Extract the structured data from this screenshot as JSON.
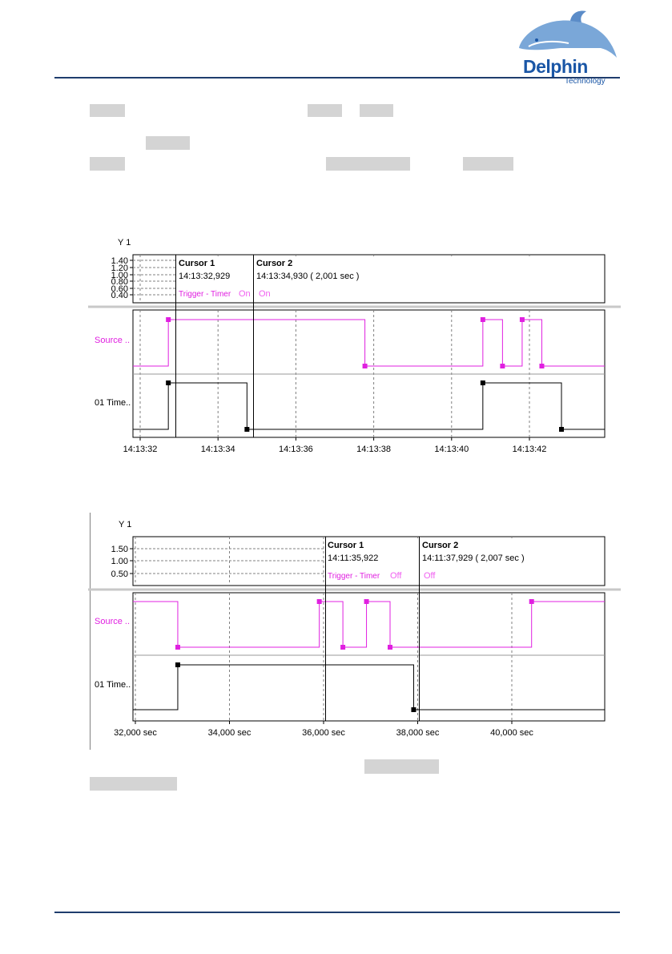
{
  "logo": {
    "name": "Delphin",
    "sub": "Technology"
  },
  "chart1": {
    "y_title": "Y 1",
    "y_ticks": [
      "1.40",
      "1.20",
      "1.00",
      "0.80",
      "0.60",
      "0.40"
    ],
    "cursor1": {
      "label": "Cursor 1",
      "time": "14:13:32,929",
      "trig": "Trigger - Timer",
      "trig_state": "On"
    },
    "cursor2": {
      "label": "Cursor 2",
      "time": "14:13:34,930 (  2,001 sec )",
      "trig_state": "On"
    },
    "row_labels": [
      "Source ..",
      "01 Time.."
    ],
    "x_ticks": [
      "14:13:32",
      "14:13:34",
      "14:13:36",
      "14:13:38",
      "14:13:40",
      "14:13:42"
    ]
  },
  "chart2": {
    "y_title": "Y 1",
    "y_ticks": [
      "1.50",
      "1.00",
      "0.50"
    ],
    "cursor1": {
      "label": "Cursor 1",
      "time": "14:11:35,922",
      "trig": "Trigger - Timer",
      "trig_state": "Off"
    },
    "cursor2": {
      "label": "Cursor 2",
      "time": "14:11:37,929 (  2,007 sec )",
      "trig_state": "Off"
    },
    "row_labels": [
      "Source ..",
      "01 Time.."
    ],
    "x_ticks": [
      "32,000 sec",
      "34,000 sec",
      "36,000 sec",
      "38,000 sec",
      "40,000 sec"
    ]
  },
  "chart_data": [
    {
      "type": "line",
      "x_unit": "time",
      "x_range": [
        "14:13:32",
        "14:13:44"
      ],
      "series": [
        {
          "name": "Source ..",
          "color": "#e020e0",
          "points": [
            [
              "14:13:32.9",
              1
            ],
            [
              "14:13:37.9",
              0
            ],
            [
              "14:13:40.9",
              1
            ],
            [
              "14:13:41.4",
              0
            ],
            [
              "14:13:41.9",
              1
            ],
            [
              "14:13:42.4",
              0
            ]
          ]
        },
        {
          "name": "01 Time..",
          "color": "#000000",
          "points": [
            [
              "14:13:32.9",
              1
            ],
            [
              "14:13:34.9",
              0
            ],
            [
              "14:13:40.9",
              1
            ],
            [
              "14:13:42.9",
              0
            ]
          ]
        }
      ]
    },
    {
      "type": "line",
      "x_unit": "sec",
      "x_range": [
        32.0,
        42.0
      ],
      "series": [
        {
          "name": "Source ..",
          "color": "#e020e0",
          "points": [
            [
              32.95,
              0
            ],
            [
              35.95,
              1
            ],
            [
              36.45,
              0
            ],
            [
              36.95,
              1
            ],
            [
              37.45,
              0
            ],
            [
              40.45,
              1
            ]
          ]
        },
        {
          "name": "01 Time..",
          "color": "#000000",
          "points": [
            [
              32.95,
              1
            ],
            [
              37.95,
              0
            ]
          ]
        }
      ]
    }
  ]
}
